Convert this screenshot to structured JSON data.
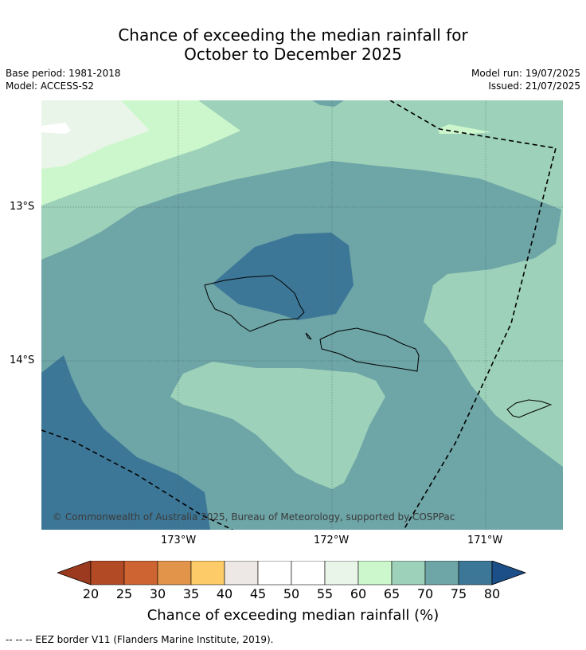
{
  "title": {
    "line1": "Chance of exceeding the median rainfall for",
    "line2": "October to December 2025"
  },
  "meta": {
    "base_period": "Base period: 1981-2018",
    "model": "Model: ACCESS-S2",
    "model_run": "Model run: 19/07/2025",
    "issued": "Issued: 21/07/2025"
  },
  "map": {
    "lat_labels": [
      "13°S",
      "14°S"
    ],
    "lon_labels": [
      "173°W",
      "172°W",
      "171°W"
    ],
    "copyright": "© Commonwealth of Australia 2025, Bureau of Meteorology, supported by COSPPac",
    "colors": {
      "p60": "#eaf5ea",
      "p65": "#ccf7cc",
      "p70": "#9dd1b9",
      "p75": "#6ea5a7",
      "p80": "#3d7797"
    }
  },
  "colorbar": {
    "labels": [
      "20",
      "25",
      "30",
      "35",
      "40",
      "45",
      "50",
      "55",
      "60",
      "65",
      "70",
      "75",
      "80"
    ],
    "colors": [
      "#9b3a1e",
      "#b24a26",
      "#cd6432",
      "#e2954a",
      "#fdcc68",
      "#ede7e5",
      "#ffffff",
      "#ffffff",
      "#eaf5ea",
      "#ccf7cc",
      "#9dd1b9",
      "#6ea5a7",
      "#3d7797",
      "#1c4f87"
    ],
    "title": "Chance of exceeding median rainfall (%)"
  },
  "footnote": "--  --  -- EEZ border V11 (Flanders Marine Institute, 2019)."
}
